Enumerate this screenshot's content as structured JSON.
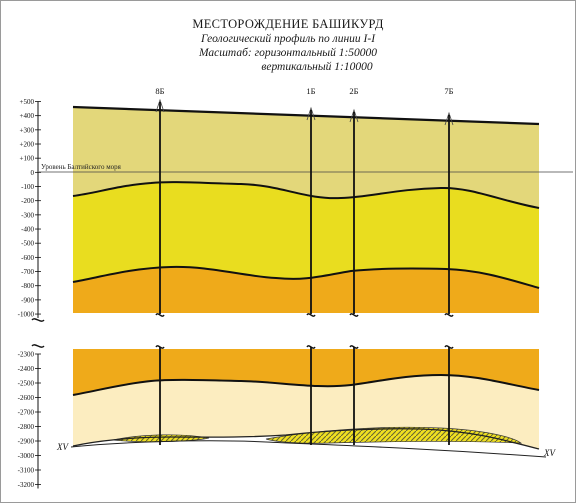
{
  "title": "МЕСТОРОЖДЕНИЕ БАШИКУРД",
  "subtitle": "Геологический профиль по линии I-I",
  "scale_horizontal": "Масштаб: горизонтальный 1:50000",
  "scale_vertical": "вертикальный 1:10000",
  "sea_level_label": "Уровень Балтийского моря",
  "wells": [
    "8Б",
    "1Б",
    "2Б",
    "7Б"
  ],
  "line_ends": {
    "left": "XV",
    "right": "XV"
  },
  "axis_upper": [
    "+500",
    "+400",
    "+300",
    "+200",
    "+100",
    "0",
    "-100",
    "-200",
    "-300",
    "-400",
    "-500",
    "-600",
    "-700",
    "-800",
    "-900",
    "-1000"
  ],
  "axis_lower": [
    "-2300",
    "-2400",
    "-2500",
    "-2600",
    "-2700",
    "-2800",
    "-2900",
    "-3000",
    "-3100",
    "-3200"
  ],
  "colors": {
    "layer_top": "#e3d77a",
    "layer_middle": "#e9dd1f",
    "layer_bottom": "#efaa1a",
    "layer_deep": "#fcedc0",
    "reservoir": "#f0e020",
    "reservoir_hatch": "#666633",
    "boundary": "#111111"
  }
}
